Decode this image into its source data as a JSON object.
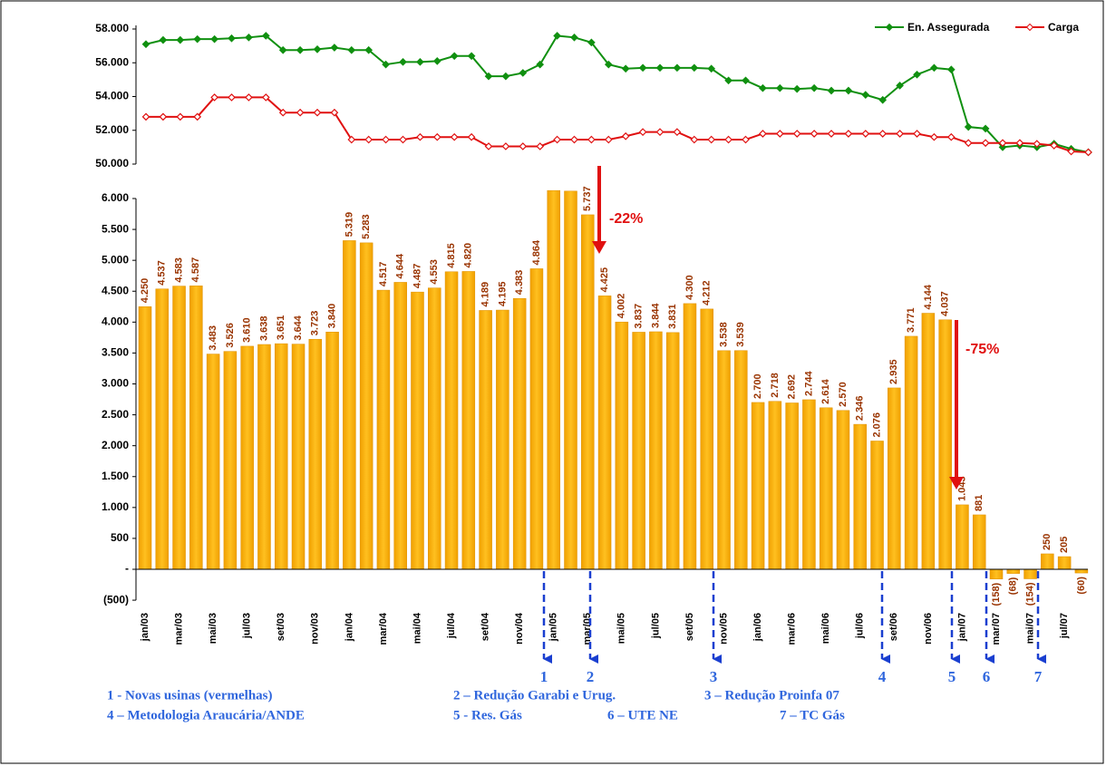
{
  "chart_data": [
    {
      "type": "line",
      "ylim": [
        50000,
        58000
      ],
      "yticks": [
        {
          "value": 50000,
          "label": "50.000"
        },
        {
          "value": 52000,
          "label": "52.000"
        },
        {
          "value": 54000,
          "label": "54.000"
        },
        {
          "value": 56000,
          "label": "56.000"
        },
        {
          "value": 58000,
          "label": "58.000"
        }
      ],
      "legend": "top-right",
      "series": [
        {
          "name": "En. Assegurada",
          "color": "#109010",
          "values": [
            57100,
            57350,
            57350,
            57400,
            57400,
            57450,
            57500,
            57600,
            56750,
            56750,
            56800,
            56900,
            56750,
            56750,
            55900,
            56050,
            56050,
            56100,
            56400,
            56400,
            55200,
            55200,
            55400,
            55900,
            57600,
            57500,
            57200,
            55900,
            55650,
            55700,
            55700,
            55700,
            55700,
            55650,
            54950,
            54950,
            54500,
            54500,
            54450,
            54500,
            54350,
            54350,
            54100,
            53800,
            54650,
            55300,
            55700,
            55600,
            52200,
            52100,
            51000,
            51100,
            51000,
            51200,
            50900,
            50700
          ]
        },
        {
          "name": "Carga",
          "color": "#e01010",
          "values": [
            52800,
            52800,
            52800,
            52800,
            53950,
            53950,
            53950,
            53950,
            53050,
            53050,
            53050,
            53050,
            51450,
            51450,
            51450,
            51450,
            51600,
            51600,
            51600,
            51600,
            51050,
            51050,
            51050,
            51050,
            51450,
            51450,
            51450,
            51450,
            51650,
            51900,
            51900,
            51900,
            51450,
            51450,
            51450,
            51450,
            51800,
            51800,
            51800,
            51800,
            51800,
            51800,
            51800,
            51800,
            51800,
            51800,
            51600,
            51600,
            51250,
            51250,
            51250,
            51250,
            51200,
            51100,
            50750,
            50700
          ]
        }
      ]
    },
    {
      "type": "bar",
      "color": "#f5aa00",
      "ylim": [
        -500,
        6000
      ],
      "yticks": [
        {
          "value": -500,
          "label": "(500)"
        },
        {
          "value": 0,
          "label": "-"
        },
        500,
        {
          "value": 1000,
          "label": "1.000"
        },
        {
          "value": 1500,
          "label": "1.500"
        },
        {
          "value": 2000,
          "label": "2.000"
        },
        {
          "value": 2500,
          "label": "2.500"
        },
        {
          "value": 3000,
          "label": "3.000"
        },
        {
          "value": 3500,
          "label": "3.500"
        },
        {
          "value": 4000,
          "label": "4.000"
        },
        {
          "value": 4500,
          "label": "4.500"
        },
        {
          "value": 5000,
          "label": "5.000"
        },
        {
          "value": 5500,
          "label": "5.500"
        },
        {
          "value": 6000,
          "label": "6.000"
        }
      ],
      "categories": [
        "jan/03",
        null,
        "mar/03",
        null,
        "mai/03",
        null,
        "jul/03",
        null,
        "set/03",
        null,
        "nov/03",
        null,
        "jan/04",
        null,
        "mar/04",
        null,
        "mai/04",
        null,
        "jul/04",
        null,
        "set/04",
        null,
        "nov/04",
        null,
        "jan/05",
        null,
        "mar/05",
        null,
        "mai/05",
        null,
        "jul/05",
        null,
        "set/05",
        null,
        "nov/05",
        null,
        "jan/06",
        null,
        "mar/06",
        null,
        "mai/06",
        null,
        "jul/06",
        null,
        "set/06",
        null,
        "nov/06",
        null,
        "jan/07",
        null,
        "mar/07",
        null,
        "mai/07",
        null,
        "jul/07",
        null
      ],
      "values": [
        4250,
        4537,
        4583,
        4587,
        3483,
        3526,
        3610,
        3638,
        3651,
        3644,
        3723,
        3840,
        5319,
        5283,
        4517,
        4644,
        4487,
        4553,
        4815,
        4820,
        4189,
        4195,
        4383,
        4864,
        6130,
        6120,
        5737,
        4425,
        4002,
        3837,
        3844,
        3831,
        4300,
        4212,
        3538,
        3539,
        2700,
        2718,
        2692,
        2744,
        2614,
        2570,
        2346,
        2076,
        2935,
        3771,
        4144,
        4037,
        1043,
        881,
        -158,
        -68,
        -154,
        250,
        205,
        -60
      ],
      "value_labels": [
        "4.250",
        "4.537",
        "4.583",
        "4.587",
        "3.483",
        "3.526",
        "3.610",
        "3.638",
        "3.651",
        "3.644",
        "3.723",
        "3.840",
        "5.319",
        "5.283",
        "4.517",
        "4.644",
        "4.487",
        "4.553",
        "4.815",
        "4.820",
        "4.189",
        "4.195",
        "4.383",
        "4.864",
        null,
        null,
        "5.737",
        "4.425",
        "4.002",
        "3.837",
        "3.844",
        "3.831",
        "4.300",
        "4.212",
        "3.538",
        "3.539",
        "2.700",
        "2.718",
        "2.692",
        "2.744",
        "2.614",
        "2.570",
        "2.346",
        "2.076",
        "2.935",
        "3.771",
        "4.144",
        "4.037",
        "1.043",
        "881",
        "(158)",
        "(68)",
        "(154)",
        "250",
        "205",
        "(60)"
      ],
      "annotations": [
        "-22%",
        "-75%"
      ],
      "markers": [
        "1",
        "2",
        "3",
        "4",
        "5",
        "6",
        "7"
      ],
      "notes": [
        [
          "1 - Novas usinas (vermelhas)",
          "2 – Redução Garabi e Urug.",
          "3 – Redução Proinfa 07"
        ],
        [
          "4 – Metodologia Araucária/ANDE",
          "5 - Res. Gás",
          "6 – UTE NE",
          "7 – TC Gás"
        ]
      ]
    }
  ]
}
